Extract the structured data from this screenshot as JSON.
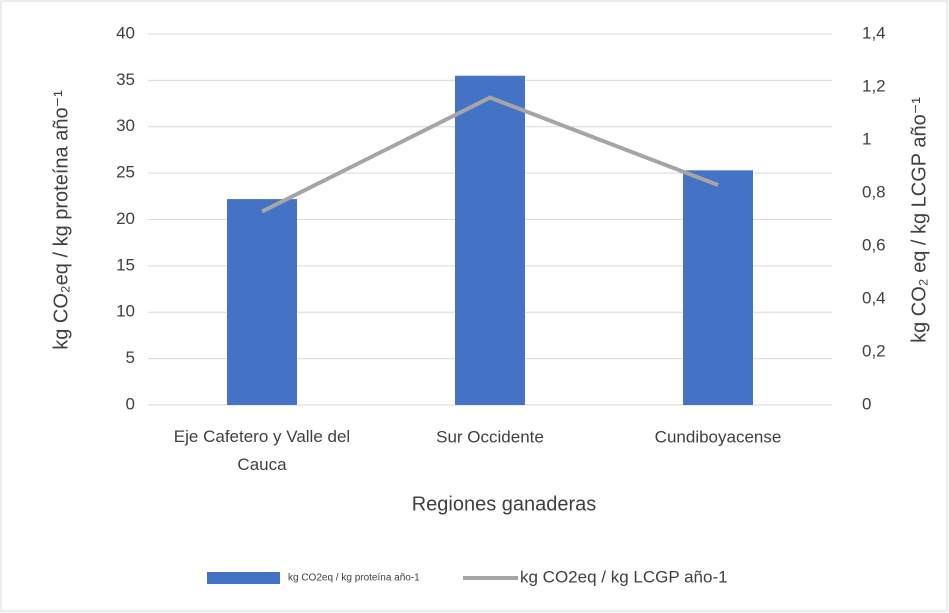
{
  "chart_data": {
    "type": "bar_line",
    "categories": [
      "Eje Cafetero y Valle del Cauca",
      "Sur Occidente",
      "Cundiboyacense"
    ],
    "x_label": "Regiones ganaderas",
    "y_label": "kg CO₂eq / kg proteína año⁻¹",
    "y2_label": "kg CO₂ eq / kg LCGP año⁻¹",
    "series": [
      {
        "name": "kg CO2eq / kg proteína año-1",
        "type": "bar",
        "color": "#4472c4",
        "values": [
          22.2,
          35.5,
          25.3
        ]
      },
      {
        "name": "kg CO2eq / kg LCGP año-1",
        "type": "line",
        "axis": "y2",
        "color": "#a5a5a5",
        "values": [
          0.73,
          1.16,
          0.83
        ]
      }
    ],
    "ylim": [
      0,
      40
    ],
    "yticks": [
      0,
      5,
      10,
      15,
      20,
      25,
      30,
      35,
      40
    ],
    "y2lim": [
      0,
      1.4
    ],
    "y2ticks": [
      0,
      {
        "value": 0.2,
        "label": "0,2"
      },
      {
        "value": 0.4,
        "label": "0,4"
      },
      {
        "value": 0.6,
        "label": "0,6"
      },
      {
        "value": 0.8,
        "label": "0,8"
      },
      1,
      {
        "value": 1.2,
        "label": "1,2"
      },
      {
        "value": 1.4,
        "label": "1,4"
      }
    ],
    "grid": true,
    "legend": "bottom"
  }
}
